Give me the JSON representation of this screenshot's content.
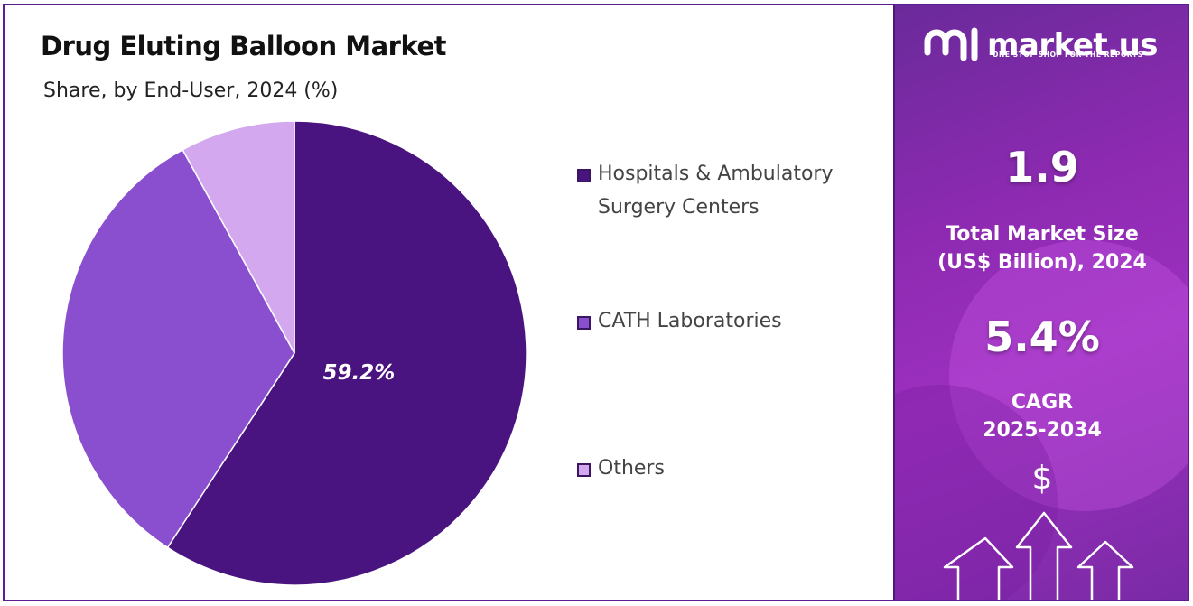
{
  "header": {
    "title": "Drug Eluting Balloon Market",
    "subtitle": "Share, by End-User, 2024 (%)"
  },
  "chart_data": {
    "type": "pie",
    "categories": [
      "Hospitals & Ambulatory Surgery Centers",
      "CATH Laboratories",
      "Others"
    ],
    "values": [
      59.2,
      32.8,
      8.0
    ],
    "colors": [
      "#4a1480",
      "#8a4fcf",
      "#d3a8ee"
    ],
    "data_labels": [
      "59.2%",
      "",
      ""
    ],
    "legend_placement": "right"
  },
  "legend": {
    "items": [
      {
        "label_line1": "Hospitals & Ambulatory",
        "label_line2": "Surgery Centers",
        "color": "#4a1480"
      },
      {
        "label_line1": "CATH Laboratories",
        "label_line2": "",
        "color": "#8a4fcf"
      },
      {
        "label_line1": "Others",
        "label_line2": "",
        "color": "#d3a8ee"
      }
    ]
  },
  "sidebar": {
    "brand_name": "market.us",
    "brand_tagline": "ONE STOP SHOP FOR THE REPORTS",
    "market_size_value": "1.9",
    "market_size_label_line1": "Total Market Size",
    "market_size_label_line2": "(US$ Billion), 2024",
    "cagr_value": "5.4%",
    "cagr_label_line1": "CAGR",
    "cagr_label_line2": "2025-2034",
    "dollar_symbol": "$",
    "icons": [
      "market-us-logo-icon",
      "dollar-icon",
      "arrow-up-icon"
    ]
  }
}
